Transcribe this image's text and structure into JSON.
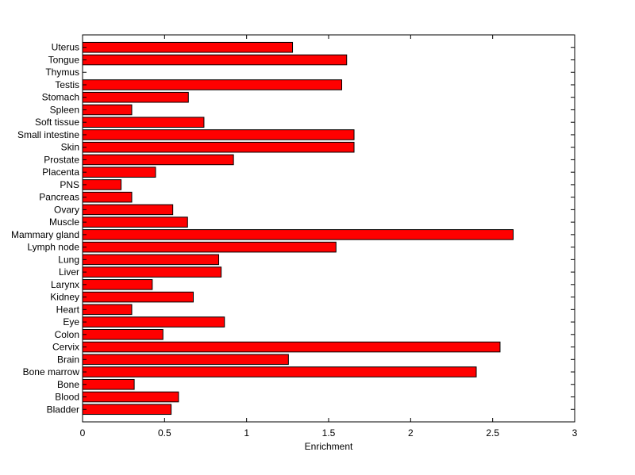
{
  "chart_data": {
    "type": "bar",
    "orientation": "horizontal",
    "title": "",
    "xlabel": "Enrichment",
    "ylabel": "",
    "xlim": [
      0,
      3
    ],
    "xticks": [
      "0",
      "0.5",
      "1",
      "1.5",
      "2",
      "2.5",
      "3"
    ],
    "grid": false,
    "legend": "none",
    "bar_color": "#ff0000",
    "bar_edge_color": "#000000",
    "categories": [
      "Bladder",
      "Blood",
      "Bone",
      "Bone marrow",
      "Brain",
      "Cervix",
      "Colon",
      "Eye",
      "Heart",
      "Kidney",
      "Larynx",
      "Liver",
      "Lung",
      "Lymph node",
      "Mammary gland",
      "Muscle",
      "Ovary",
      "Pancreas",
      "PNS",
      "Placenta",
      "Prostate",
      "Skin",
      "Small intestine",
      "Soft tissue",
      "Spleen",
      "Stomach",
      "Testis",
      "Thymus",
      "Tongue",
      "Uterus"
    ],
    "values": [
      0.54,
      0.585,
      0.315,
      2.4,
      1.255,
      2.545,
      0.49,
      0.865,
      0.3,
      0.675,
      0.425,
      0.845,
      0.83,
      1.545,
      2.625,
      0.64,
      0.55,
      0.3,
      0.235,
      0.445,
      0.92,
      1.655,
      1.655,
      0.74,
      0.3,
      0.645,
      1.58,
      0.0,
      1.61,
      1.28
    ]
  }
}
